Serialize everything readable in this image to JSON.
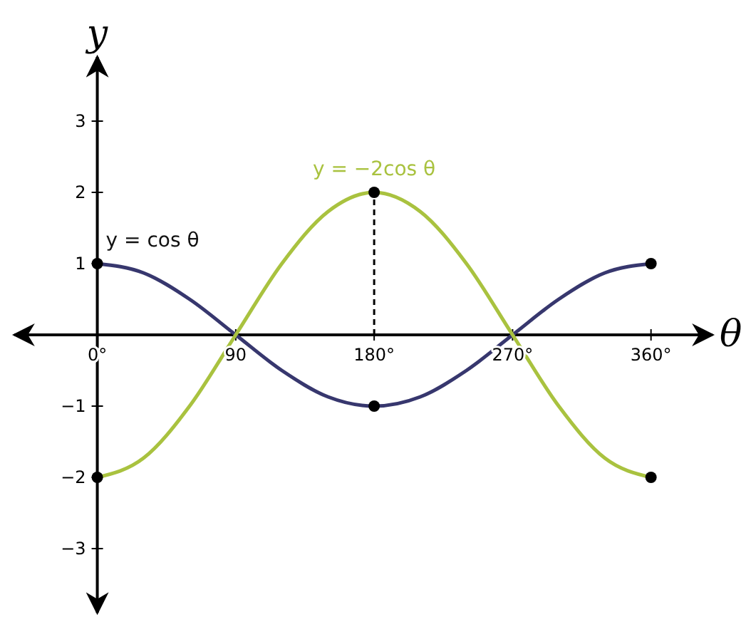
{
  "chart_data": {
    "type": "line",
    "xlabel": "θ",
    "ylabel": "y",
    "xlim": [
      -54,
      400
    ],
    "ylim": [
      -3.9,
      3.9
    ],
    "xticks": [
      {
        "value": 0,
        "label": "0°"
      },
      {
        "value": 90,
        "label": "90"
      },
      {
        "value": 180,
        "label": "180°"
      },
      {
        "value": 270,
        "label": "270°"
      },
      {
        "value": 360,
        "label": "360°"
      }
    ],
    "yticks": [
      -3,
      -2,
      -1,
      1,
      2,
      3
    ],
    "x": [
      0,
      30,
      60,
      90,
      120,
      150,
      180,
      210,
      240,
      270,
      300,
      330,
      360
    ],
    "marker": "none",
    "grid": false,
    "series": [
      {
        "name": "y = cos θ",
        "color": "#37376e",
        "values": [
          1,
          0.87,
          0.5,
          0,
          -0.5,
          -0.87,
          -1,
          -0.87,
          -0.5,
          0,
          0.5,
          0.87,
          1
        ]
      },
      {
        "name": "y = −2cos θ",
        "color": "#a9c23f",
        "values": [
          -2,
          -1.73,
          -1,
          0,
          1,
          1.73,
          2,
          1.73,
          1,
          0,
          -1,
          -1.73,
          -2
        ]
      },
      {
        "type": "scatter",
        "marker": "circle",
        "color": "#000000",
        "x": [
          0,
          180,
          360,
          0,
          180,
          360
        ],
        "values": [
          1,
          -1,
          1,
          -2,
          2,
          -2
        ]
      }
    ],
    "ref_lines": [
      {
        "axis": "x",
        "value": 180,
        "line_style": "dashed",
        "color": "#000000"
      }
    ]
  }
}
